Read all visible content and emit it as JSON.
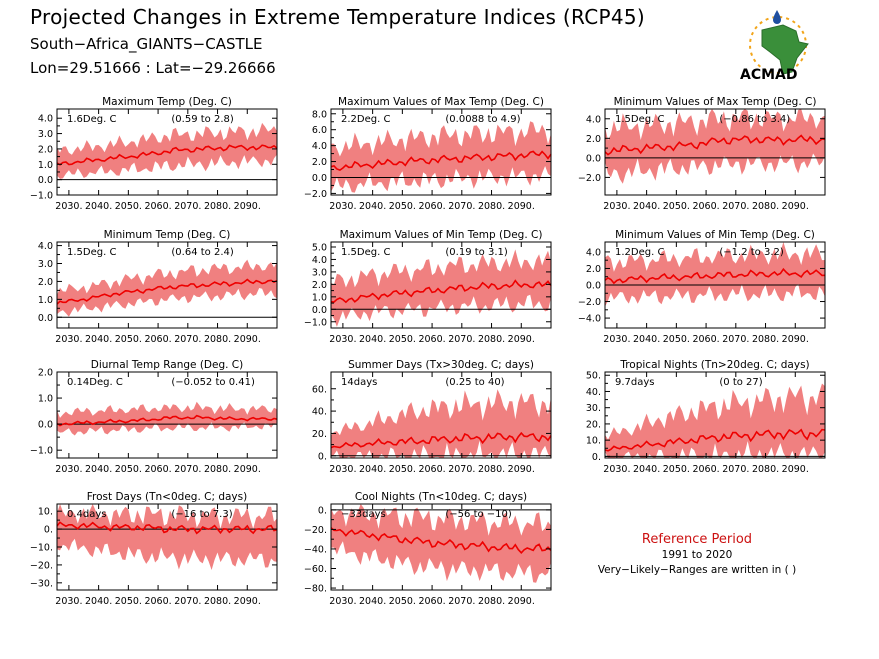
{
  "header": {
    "title": "Projected Changes in Extreme Temperature Indices (RCP45)",
    "location": "South−Africa_GIANTS−CASTLE",
    "coords": "Lon=29.51666 : Lat=−29.26666"
  },
  "logo": {
    "text": "ACMAD",
    "colors": {
      "africa": "#3a8f3a",
      "text": "#1f4fa0",
      "sun": "#f2a51a"
    }
  },
  "reference": {
    "title": "Reference Period",
    "years": "1991 to 2020",
    "note": "Very−Likely−Ranges are written in ( )"
  },
  "colors": {
    "band": "#f08080",
    "median": "#ee0000",
    "zero_line": "#000000"
  },
  "chart_data": [
    {
      "type": "area",
      "title": "Maximum Temp (Deg. C)",
      "summary": "1.6Deg. C",
      "range": "(0.59 to 2.8)",
      "ylim": [
        -1.0,
        4.6
      ],
      "yticks": [
        -1.0,
        0.0,
        1.0,
        2.0,
        3.0,
        4.0
      ],
      "ytick_labels": [
        "−1.0",
        "0.0",
        "1.0",
        "2.0",
        "3.0",
        "4.0"
      ],
      "xlim": [
        2026,
        2100
      ],
      "xticks": [
        2030,
        2040,
        2050,
        2060,
        2070,
        2080,
        2090
      ],
      "xtick_labels": [
        "2030.",
        "2040.",
        "2050.",
        "2060.",
        "2070.",
        "2080.",
        "2090."
      ],
      "x": [
        2026,
        2035,
        2045,
        2055,
        2065,
        2075,
        2085,
        2095,
        2100
      ],
      "median": [
        1.0,
        1.2,
        1.4,
        1.6,
        1.9,
        2.0,
        2.1,
        2.1,
        2.1
      ],
      "low": [
        0.3,
        0.5,
        0.6,
        0.8,
        1.0,
        1.1,
        1.2,
        1.3,
        1.3
      ],
      "high": [
        1.8,
        2.0,
        2.2,
        2.5,
        2.8,
        2.9,
        3.0,
        3.1,
        3.1
      ]
    },
    {
      "type": "area",
      "title": "Maximum Values of Max Temp (Deg. C)",
      "summary": "2.2Deg. C",
      "range": "(0.0088 to 4.9)",
      "ylim": [
        -2.2,
        8.6
      ],
      "yticks": [
        -2.0,
        0.0,
        2.0,
        4.0,
        6.0,
        8.0
      ],
      "ytick_labels": [
        "−2.0",
        "0.0",
        "2.0",
        "4.0",
        "6.0",
        "8.0"
      ],
      "xlim": [
        2026,
        2100
      ],
      "xticks": [
        2030,
        2040,
        2050,
        2060,
        2070,
        2080,
        2090
      ],
      "xtick_labels": [
        "2030.",
        "2040.",
        "2050.",
        "2060.",
        "2070.",
        "2080.",
        "2090."
      ],
      "x": [
        2026,
        2035,
        2045,
        2055,
        2065,
        2075,
        2085,
        2095,
        2100
      ],
      "median": [
        1.2,
        1.5,
        1.8,
        2.1,
        2.3,
        2.5,
        2.7,
        2.9,
        3.0
      ],
      "low": [
        -1.0,
        -0.7,
        -0.4,
        -0.2,
        0.0,
        0.2,
        0.3,
        0.5,
        0.5
      ],
      "high": [
        3.5,
        3.9,
        4.3,
        4.7,
        5.0,
        5.2,
        5.4,
        5.6,
        5.6
      ]
    },
    {
      "type": "area",
      "title": "Minimum Values of Max Temp (Deg. C)",
      "summary": "1.5Deg. C",
      "range": "(−0.86 to 3.4)",
      "ylim": [
        -3.8,
        5.0
      ],
      "yticks": [
        -2.0,
        0.0,
        2.0,
        4.0
      ],
      "ytick_labels": [
        "−2.0",
        "0.0",
        "2.0",
        "4.0"
      ],
      "xlim": [
        2026,
        2100
      ],
      "xticks": [
        2030,
        2040,
        2050,
        2060,
        2070,
        2080,
        2090
      ],
      "xtick_labels": [
        "2030.",
        "2040.",
        "2050.",
        "2060.",
        "2070.",
        "2080.",
        "2090."
      ],
      "x": [
        2026,
        2035,
        2045,
        2055,
        2065,
        2075,
        2085,
        2095,
        2100
      ],
      "median": [
        0.7,
        0.9,
        1.1,
        1.3,
        1.8,
        1.9,
        1.8,
        1.9,
        1.8
      ],
      "low": [
        -1.5,
        -1.3,
        -1.0,
        -0.8,
        -0.5,
        -0.4,
        -0.4,
        -0.3,
        -0.3
      ],
      "high": [
        2.8,
        3.0,
        3.2,
        3.4,
        3.8,
        3.9,
        3.8,
        3.9,
        3.8
      ]
    },
    {
      "type": "area",
      "title": "Minimum Temp (Deg. C)",
      "summary": "1.5Deg. C",
      "range": "(0.64 to 2.4)",
      "ylim": [
        -0.6,
        4.2
      ],
      "yticks": [
        0.0,
        1.0,
        2.0,
        3.0,
        4.0
      ],
      "ytick_labels": [
        "0.0",
        "1.0",
        "2.0",
        "3.0",
        "4.0"
      ],
      "xlim": [
        2026,
        2100
      ],
      "xticks": [
        2030,
        2040,
        2050,
        2060,
        2070,
        2080,
        2090
      ],
      "xtick_labels": [
        "2030.",
        "2040.",
        "2050.",
        "2060.",
        "2070.",
        "2080.",
        "2090."
      ],
      "x": [
        2026,
        2035,
        2045,
        2055,
        2065,
        2075,
        2085,
        2095,
        2100
      ],
      "median": [
        0.8,
        1.0,
        1.3,
        1.5,
        1.7,
        1.8,
        1.9,
        2.0,
        2.0
      ],
      "low": [
        0.3,
        0.5,
        0.7,
        0.9,
        1.1,
        1.2,
        1.3,
        1.4,
        1.4
      ],
      "high": [
        1.4,
        1.6,
        1.9,
        2.2,
        2.4,
        2.6,
        2.7,
        2.8,
        2.8
      ]
    },
    {
      "type": "area",
      "title": "Maximum Values of Min Temp (Deg. C)",
      "summary": "1.5Deg. C",
      "range": "(0.19 to 3.1)",
      "ylim": [
        -1.5,
        5.4
      ],
      "yticks": [
        -1.0,
        0.0,
        1.0,
        2.0,
        3.0,
        4.0,
        5.0
      ],
      "ytick_labels": [
        "−1.0",
        "0.0",
        "1.0",
        "2.0",
        "3.0",
        "4.0",
        "5.0"
      ],
      "xlim": [
        2026,
        2100
      ],
      "xticks": [
        2030,
        2040,
        2050,
        2060,
        2070,
        2080,
        2090
      ],
      "xtick_labels": [
        "2030.",
        "2040.",
        "2050.",
        "2060.",
        "2070.",
        "2080.",
        "2090."
      ],
      "x": [
        2026,
        2035,
        2045,
        2055,
        2065,
        2075,
        2085,
        2095,
        2100
      ],
      "median": [
        0.6,
        0.9,
        1.2,
        1.4,
        1.6,
        1.8,
        1.9,
        2.0,
        1.9
      ],
      "low": [
        -0.6,
        -0.3,
        0.0,
        0.1,
        0.3,
        0.4,
        0.5,
        0.6,
        0.5
      ],
      "high": [
        2.0,
        2.4,
        2.8,
        3.0,
        3.3,
        3.5,
        3.6,
        3.7,
        3.6
      ]
    },
    {
      "type": "area",
      "title": "Minimum Values of Min Temp (Deg. C)",
      "summary": "1.2Deg. C",
      "range": "(−1.2 to 3.2)",
      "ylim": [
        -5.2,
        5.2
      ],
      "yticks": [
        -4.0,
        -2.0,
        0.0,
        2.0,
        4.0
      ],
      "ytick_labels": [
        "−4.0",
        "−2.0",
        "0.0",
        "2.0",
        "4.0"
      ],
      "xlim": [
        2026,
        2100
      ],
      "xticks": [
        2030,
        2040,
        2050,
        2060,
        2070,
        2080,
        2090
      ],
      "xtick_labels": [
        "2030.",
        "2040.",
        "2050.",
        "2060.",
        "2070.",
        "2080.",
        "2090."
      ],
      "x": [
        2026,
        2035,
        2045,
        2055,
        2065,
        2075,
        2085,
        2095,
        2100
      ],
      "median": [
        0.5,
        0.7,
        0.9,
        1.0,
        1.2,
        1.3,
        1.4,
        1.4,
        1.4
      ],
      "low": [
        -1.4,
        -1.3,
        -1.2,
        -1.1,
        -1.0,
        -0.9,
        -0.9,
        -0.8,
        -0.8
      ],
      "high": [
        2.5,
        2.7,
        2.9,
        3.1,
        3.3,
        3.4,
        3.5,
        3.5,
        3.5
      ]
    },
    {
      "type": "area",
      "title": "Diurnal Temp Range (Deg. C)",
      "summary": "0.14Deg. C",
      "range": "(−0.052 to 0.41)",
      "ylim": [
        -1.3,
        2.0
      ],
      "yticks": [
        -1.0,
        0.0,
        1.0,
        2.0
      ],
      "ytick_labels": [
        "−1.0",
        "0.0",
        "1.0",
        "2.0"
      ],
      "xlim": [
        2026,
        2100
      ],
      "xticks": [
        2030,
        2040,
        2050,
        2060,
        2070,
        2080,
        2090
      ],
      "xtick_labels": [
        "2030.",
        "2040.",
        "2050.",
        "2060.",
        "2070.",
        "2080.",
        "2090."
      ],
      "x": [
        2026,
        2035,
        2045,
        2055,
        2065,
        2075,
        2085,
        2095,
        2100
      ],
      "median": [
        0.0,
        0.05,
        0.1,
        0.15,
        0.25,
        0.25,
        0.2,
        0.2,
        0.2
      ],
      "low": [
        -0.3,
        -0.25,
        -0.2,
        -0.15,
        -0.1,
        -0.1,
        -0.1,
        -0.05,
        -0.05
      ],
      "high": [
        0.4,
        0.45,
        0.5,
        0.55,
        0.6,
        0.6,
        0.55,
        0.55,
        0.55
      ]
    },
    {
      "type": "area",
      "title": "Summer Days (Tx>30deg. C; days)",
      "summary": "14days",
      "range": "(0.25 to 40)",
      "ylim": [
        -2,
        75
      ],
      "yticks": [
        0,
        20,
        40,
        60
      ],
      "ytick_labels": [
        "0.",
        "20.",
        "40.",
        "60."
      ],
      "xlim": [
        2026,
        2100
      ],
      "xticks": [
        2030,
        2040,
        2050,
        2060,
        2070,
        2080,
        2090
      ],
      "xtick_labels": [
        "2030.",
        "2040.",
        "2050.",
        "2060.",
        "2070.",
        "2080.",
        "2090."
      ],
      "x": [
        2026,
        2035,
        2045,
        2055,
        2065,
        2075,
        2085,
        2095,
        2100
      ],
      "median": [
        8,
        10,
        12,
        13,
        15,
        16,
        17,
        17,
        17
      ],
      "low": [
        0,
        0,
        1,
        1,
        2,
        2,
        3,
        3,
        3
      ],
      "high": [
        20,
        25,
        32,
        38,
        42,
        44,
        45,
        45,
        45
      ]
    },
    {
      "type": "area",
      "title": "Tropical Nights (Tn>20deg. C; days)",
      "summary": "9.7days",
      "range": "(0 to 27)",
      "ylim": [
        -1,
        52
      ],
      "yticks": [
        0,
        10,
        20,
        30,
        40,
        50
      ],
      "ytick_labels": [
        "0.",
        "10.",
        "20.",
        "30.",
        "40.",
        "50."
      ],
      "xlim": [
        2026,
        2100
      ],
      "xticks": [
        2030,
        2040,
        2050,
        2060,
        2070,
        2080,
        2090
      ],
      "xtick_labels": [
        "2030.",
        "2040.",
        "2050.",
        "2060.",
        "2070.",
        "2080.",
        "2090."
      ],
      "x": [
        2026,
        2035,
        2045,
        2055,
        2065,
        2075,
        2085,
        2095,
        2100
      ],
      "median": [
        4,
        6,
        8,
        10,
        12,
        13,
        14,
        14,
        14
      ],
      "low": [
        0,
        0,
        0,
        1,
        1,
        2,
        2,
        2,
        2
      ],
      "high": [
        12,
        16,
        22,
        26,
        30,
        32,
        34,
        35,
        35
      ]
    },
    {
      "type": "area",
      "title": "Frost Days (Tn<0deg. C; days)",
      "summary": "0.4days",
      "range": "(−16 to 7.3)",
      "ylim": [
        -34,
        14
      ],
      "yticks": [
        -30,
        -20,
        -10,
        0,
        10
      ],
      "ytick_labels": [
        "−30.",
        "−20.",
        "−10.",
        "0.",
        "10."
      ],
      "xlim": [
        2026,
        2100
      ],
      "xticks": [
        2030,
        2040,
        2050,
        2060,
        2070,
        2080,
        2090
      ],
      "xtick_labels": [
        "2030.",
        "2040.",
        "2050.",
        "2060.",
        "2070.",
        "2080.",
        "2090."
      ],
      "x": [
        2026,
        2035,
        2045,
        2055,
        2065,
        2075,
        2085,
        2095,
        2100
      ],
      "median": [
        2,
        2,
        1,
        1,
        0,
        0,
        0,
        0,
        0
      ],
      "low": [
        -8,
        -10,
        -12,
        -14,
        -15,
        -16,
        -16,
        -16,
        -16
      ],
      "high": [
        8,
        8,
        7,
        7,
        7,
        6,
        6,
        6,
        6
      ]
    },
    {
      "type": "area",
      "title": "Cool Nights (Tn<10deg. C; days)",
      "summary": "−33days",
      "range": "(−56 to −10)",
      "ylim": [
        -82,
        6
      ],
      "yticks": [
        -80,
        -60,
        -40,
        -20,
        0
      ],
      "ytick_labels": [
        "−80.",
        "−60.",
        "−40.",
        "−20.",
        "0."
      ],
      "xlim": [
        2026,
        2100
      ],
      "xticks": [
        2030,
        2040,
        2050,
        2060,
        2070,
        2080,
        2090
      ],
      "xtick_labels": [
        "2030.",
        "2040.",
        "2050.",
        "2060.",
        "2070.",
        "2080.",
        "2090."
      ],
      "x": [
        2026,
        2035,
        2045,
        2055,
        2065,
        2075,
        2085,
        2095,
        2100
      ],
      "median": [
        -20,
        -24,
        -28,
        -32,
        -35,
        -37,
        -39,
        -40,
        -40
      ],
      "low": [
        -38,
        -44,
        -50,
        -55,
        -58,
        -60,
        -62,
        -63,
        -63
      ],
      "high": [
        -4,
        -6,
        -8,
        -10,
        -12,
        -14,
        -16,
        -17,
        -17
      ]
    }
  ]
}
